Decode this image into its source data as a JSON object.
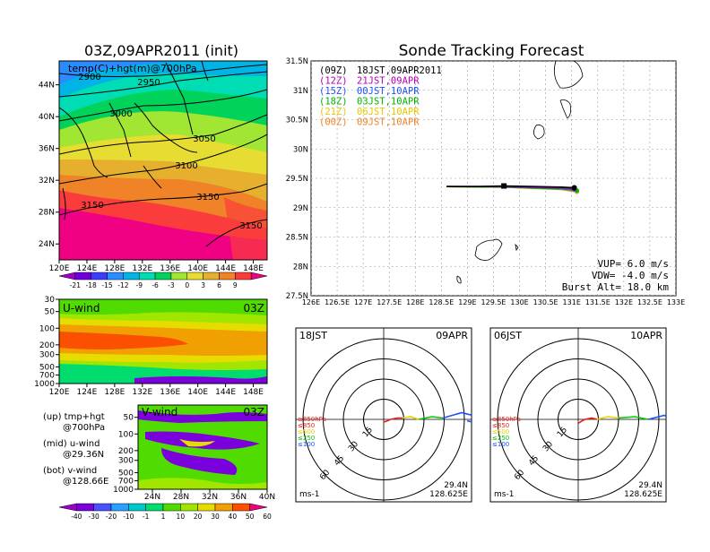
{
  "colors": {
    "temp_scale": [
      "#a000c8",
      "#6e00dc",
      "#3c3cff",
      "#2b8cff",
      "#00b4e6",
      "#00dcb4",
      "#00d25a",
      "#a0e632",
      "#e6dc32",
      "#e6af2d",
      "#f08228",
      "#fa3c3c",
      "#f00082"
    ],
    "wind_scale": [
      "#a000c8",
      "#7a00dc",
      "#4b50ff",
      "#2aa0ff",
      "#00c8c8",
      "#00dc6e",
      "#50dc00",
      "#a0e600",
      "#e6dc00",
      "#f0a000",
      "#fa5000",
      "#f00082"
    ],
    "track_12z": "#b400b4",
    "track_15z": "#1e50ff",
    "track_18z": "#00b400",
    "track_21z": "#e6c800",
    "track_00z": "#f08228",
    "track_09z": "#000000",
    "hodo_850": "#e61e1e",
    "hodo_500": "#e6d200",
    "hodo_250": "#00c800",
    "hodo_100": "#1e50ff"
  },
  "top_left": {
    "title": "03Z,09APR2011 (init)",
    "subtitle": "temp(C)+hgt(m)@700hPa",
    "lat_labels": [
      "44N",
      "40N",
      "36N",
      "32N",
      "28N",
      "24N"
    ],
    "lon_labels": [
      "120E",
      "124E",
      "128E",
      "132E",
      "136E",
      "140E",
      "144E",
      "148E"
    ],
    "contour_labels": [
      "2900",
      "2950",
      "3000",
      "3050",
      "3100",
      "3150",
      "3150",
      "3150"
    ],
    "scale_labels": [
      "-21",
      "-18",
      "-15",
      "-12",
      "-9",
      "-6",
      "-3",
      "0",
      "3",
      "6",
      "9"
    ]
  },
  "u_panel": {
    "title": "U-wind",
    "time": "03Z",
    "p_labels": [
      "30",
      "50",
      "100",
      "200",
      "300",
      "500",
      "700",
      "1000"
    ],
    "lon_labels": [
      "120E",
      "124E",
      "128E",
      "132E",
      "136E",
      "140E",
      "144E",
      "148E"
    ]
  },
  "v_panel": {
    "title": "V-wind",
    "time": "03Z",
    "p_labels": [
      "50",
      "100",
      "200",
      "300",
      "500",
      "700",
      "1000"
    ],
    "lat_labels": [
      "24N",
      "28N",
      "32N",
      "36N",
      "40N"
    ]
  },
  "notes": {
    "up1": "(up) tmp+hgt",
    "up2": "@700hPa",
    "mid1": "(mid) u-wind",
    "mid2": "@29.36N",
    "bot1": "(bot) v-wind",
    "bot2": "@128.66E"
  },
  "wind_scale_labels": [
    "-40",
    "-30",
    "-20",
    "-10",
    "-1",
    "1",
    "10",
    "20",
    "30",
    "40",
    "50",
    "60"
  ],
  "track": {
    "title": "Sonde Tracking Forecast",
    "lat_labels": [
      "31.5N",
      "31N",
      "30.5N",
      "30N",
      "29.5N",
      "29N",
      "28.5N",
      "28N",
      "27.5N"
    ],
    "lon_labels": [
      "126E",
      "126.5E",
      "127E",
      "127.5E",
      "128E",
      "128.5E",
      "129E",
      "129.5E",
      "130E",
      "130.5E",
      "131E",
      "131.5E",
      "132E",
      "132.5E",
      "133E"
    ],
    "legend": [
      {
        "tag": "(09Z)",
        "text": "18JST,09APR2011"
      },
      {
        "tag": "(12Z)",
        "text": "21JST,09APR"
      },
      {
        "tag": "(15Z)",
        "text": "00JST,10APR"
      },
      {
        "tag": "(18Z)",
        "text": "03JST,10APR"
      },
      {
        "tag": "(21Z)",
        "text": "06JST,10APR"
      },
      {
        "tag": "(00Z)",
        "text": "09JST,10APR"
      }
    ],
    "vup": "VUP= 6.0 m/s",
    "vdw": "VDW= -4.0 m/s",
    "burst": "Burst Alt= 18.0 km"
  },
  "hodo1": {
    "left": "18JST",
    "right": "09APR",
    "lat": "29.4N",
    "lon": "128.625E",
    "unit": "ms-1",
    "levels": [
      "≥850hPa",
      "≤850",
      "≤500",
      "≤250",
      "≤100"
    ],
    "ring_labels": [
      "15",
      "30",
      "45",
      "60"
    ]
  },
  "hodo2": {
    "left": "06JST",
    "right": "10APR",
    "lat": "29.4N",
    "lon": "128.625E",
    "unit": "ms-1",
    "levels": [
      "≥850hPa",
      "≤850",
      "≤500",
      "≤250",
      "≤100"
    ],
    "ring_labels": [
      "15",
      "30",
      "45",
      "60"
    ]
  },
  "chart_data": [
    {
      "type": "heatmap",
      "title": "03Z,09APR2011 (init)",
      "subtitle": "temp(C)+hgt(m)@700hPa",
      "x_range": [
        120,
        150
      ],
      "y_range": [
        22,
        47
      ],
      "x_ticks": [
        "120E",
        "124E",
        "128E",
        "132E",
        "136E",
        "140E",
        "144E",
        "148E"
      ],
      "y_ticks": [
        "44N",
        "40N",
        "36N",
        "32N",
        "28N",
        "24N"
      ],
      "colorbar": [
        -21,
        -18,
        -15,
        -12,
        -9,
        -6,
        -3,
        0,
        3,
        6,
        9
      ],
      "height_contours_m": [
        2900,
        2950,
        3000,
        3050,
        3100,
        3150
      ]
    },
    {
      "type": "heatmap",
      "title": "U-wind",
      "x_ticks": [
        "120E",
        "124E",
        "128E",
        "132E",
        "136E",
        "140E",
        "144E",
        "148E"
      ],
      "y_ticks_hPa": [
        30,
        50,
        100,
        200,
        300,
        500,
        700,
        1000
      ],
      "colorbar": [
        -40,
        -30,
        -20,
        -10,
        -1,
        1,
        10,
        20,
        30,
        40,
        50,
        60
      ]
    },
    {
      "type": "heatmap",
      "title": "V-wind",
      "x_ticks": [
        "24N",
        "28N",
        "32N",
        "36N",
        "40N"
      ],
      "y_ticks_hPa": [
        50,
        100,
        200,
        300,
        500,
        700,
        1000
      ]
    },
    {
      "type": "line",
      "title": "Sonde Tracking Forecast",
      "xlim": [
        126,
        133
      ],
      "ylim": [
        27.5,
        31.5
      ],
      "series": [
        {
          "name": "(09Z) 18JST,09APR2011",
          "x": [
            128.6,
            129.2,
            129.7,
            130.3,
            130.8,
            131.05
          ],
          "y": [
            29.36,
            29.36,
            29.37,
            29.36,
            29.35,
            29.34
          ]
        },
        {
          "name": "(12Z) 21JST,09APR",
          "x": [
            128.6,
            129.7,
            130.8,
            131.05
          ],
          "y": [
            29.36,
            29.36,
            29.34,
            29.32
          ]
        },
        {
          "name": "(15Z) 00JST,10APR",
          "x": [
            128.6,
            129.7,
            130.8,
            131.05
          ],
          "y": [
            29.36,
            29.36,
            29.33,
            29.31
          ]
        },
        {
          "name": "(18Z) 03JST,10APR",
          "x": [
            128.6,
            129.7,
            130.8,
            131.1
          ],
          "y": [
            29.36,
            29.35,
            29.32,
            29.29
          ]
        },
        {
          "name": "(21Z) 06JST,10APR",
          "x": [
            128.6,
            129.7,
            130.8,
            131.1
          ],
          "y": [
            29.36,
            29.35,
            29.32,
            29.28
          ]
        },
        {
          "name": "(00Z) 09JST,10APR",
          "x": [
            128.6,
            129.7,
            130.8,
            131.1
          ],
          "y": [
            29.36,
            29.35,
            29.31,
            29.27
          ]
        }
      ],
      "annotations": [
        "VUP= 6.0 m/s",
        "VDW= -4.0 m/s",
        "Burst Alt= 18.0 km"
      ]
    },
    {
      "type": "line",
      "title": "18JST 09APR hodograph",
      "rings_ms": [
        15,
        30,
        45,
        60
      ],
      "series": [
        {
          "name": "≥850hPa",
          "u": [
            0,
            3,
            5
          ],
          "v": [
            -2,
            -1,
            0
          ]
        },
        {
          "name": "≤850",
          "u": [
            5,
            10,
            14
          ],
          "v": [
            0,
            1,
            1
          ]
        },
        {
          "name": "≤500",
          "u": [
            14,
            20,
            26
          ],
          "v": [
            1,
            2,
            0
          ]
        },
        {
          "name": "≤250",
          "u": [
            26,
            36,
            44
          ],
          "v": [
            0,
            2,
            1
          ]
        },
        {
          "name": "≤100",
          "u": [
            44,
            58,
            66,
            70,
            62
          ],
          "v": [
            1,
            5,
            3,
            -3,
            -1
          ]
        }
      ]
    },
    {
      "type": "line",
      "title": "06JST 10APR hodograph",
      "rings_ms": [
        15,
        30,
        45,
        60
      ],
      "series": [
        {
          "name": "≥850hPa",
          "u": [
            0,
            3,
            5
          ],
          "v": [
            -3,
            -1,
            0
          ]
        },
        {
          "name": "≤850",
          "u": [
            5,
            10,
            14
          ],
          "v": [
            0,
            1,
            0
          ]
        },
        {
          "name": "≤500",
          "u": [
            14,
            22,
            30
          ],
          "v": [
            0,
            2,
            1
          ]
        },
        {
          "name": "≤250",
          "u": [
            30,
            42,
            52
          ],
          "v": [
            1,
            2,
            0
          ]
        },
        {
          "name": "≤100",
          "u": [
            52,
            64,
            72,
            70
          ],
          "v": [
            0,
            3,
            -1,
            -3
          ]
        }
      ]
    }
  ]
}
